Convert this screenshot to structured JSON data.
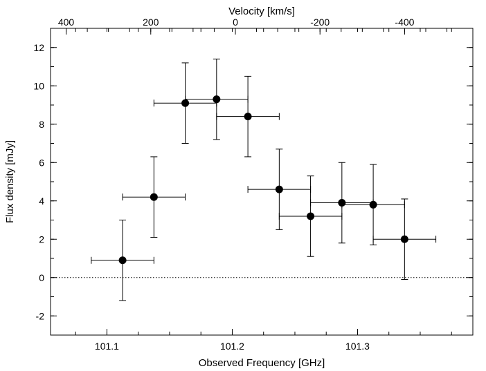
{
  "chart_data": {
    "type": "scatter",
    "xlabel": "Observed Frequency [GHz]",
    "ylabel": "Flux density [mJy]",
    "top_xlabel": "Velocity [km/s]",
    "xlim": [
      101.055,
      101.392
    ],
    "ylim": [
      -3,
      13
    ],
    "x_ticks": [
      "101.1",
      "101.2",
      "101.3"
    ],
    "x_tick_values": [
      101.1,
      101.2,
      101.3
    ],
    "x_minor_step": 0.025,
    "y_ticks": [
      "-2",
      "0",
      "2",
      "4",
      "6",
      "8",
      "10",
      "12"
    ],
    "y_tick_values": [
      -2,
      0,
      2,
      4,
      6,
      8,
      10,
      12
    ],
    "y_minor_step": 1,
    "top_ticks": [
      "400",
      "200",
      "0",
      "-200",
      "-400"
    ],
    "top_tick_values": [
      400,
      200,
      0,
      -200,
      -400
    ],
    "top_minor_step": 50,
    "velocity_zero_freq": 101.2025,
    "velocity_per_ghz": -2962,
    "zero_line": {
      "y": 0,
      "style": "dotted"
    },
    "grid": false,
    "series": [
      {
        "marker": "filled-circle",
        "color": "#000000",
        "points": [
          {
            "x": 101.1125,
            "y": 0.9,
            "xerr": 0.025,
            "yerr": 2.1
          },
          {
            "x": 101.1375,
            "y": 4.2,
            "xerr": 0.025,
            "yerr": 2.1
          },
          {
            "x": 101.1625,
            "y": 9.1,
            "xerr": 0.025,
            "yerr": 2.1
          },
          {
            "x": 101.1875,
            "y": 9.3,
            "xerr": 0.025,
            "yerr": 2.1
          },
          {
            "x": 101.2125,
            "y": 8.4,
            "xerr": 0.025,
            "yerr": 2.1
          },
          {
            "x": 101.2375,
            "y": 4.6,
            "xerr": 0.025,
            "yerr": 2.1
          },
          {
            "x": 101.2625,
            "y": 3.2,
            "xerr": 0.025,
            "yerr": 2.1
          },
          {
            "x": 101.2875,
            "y": 3.9,
            "xerr": 0.025,
            "yerr": 2.1
          },
          {
            "x": 101.3125,
            "y": 3.8,
            "xerr": 0.025,
            "yerr": 2.1
          },
          {
            "x": 101.3375,
            "y": 2.0,
            "xerr": 0.025,
            "yerr": 2.1
          }
        ]
      }
    ]
  }
}
